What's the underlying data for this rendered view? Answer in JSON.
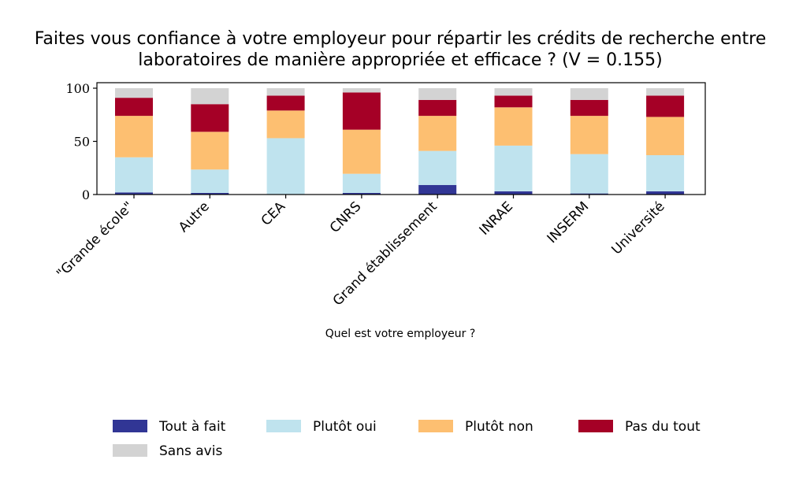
{
  "chart_data": {
    "type": "bar",
    "stacked": true,
    "title_lines": [
      "Faites vous confiance à votre employeur pour répartir les crédits de recherche entre",
      "laboratoires de manière appropriée et efficace ? (V = 0.155)"
    ],
    "xlabel": "Quel est votre employeur ?",
    "ylabel": "",
    "ylim": [
      0,
      100
    ],
    "yticks": [
      "0",
      "50",
      "100"
    ],
    "grid": false,
    "legend_position": "bottom",
    "categories": [
      "\"Grande école\"",
      "Autre",
      "CEA",
      "CNRS",
      "Grand établissement",
      "INRAE",
      "INSERM",
      "Université"
    ],
    "series": [
      {
        "name": "Tout à fait",
        "color": "#313695",
        "values": [
          2,
          1.5,
          0,
          1.5,
          9,
          3,
          1,
          3
        ]
      },
      {
        "name": "Plutôt oui",
        "color": "#bfe3ee",
        "values": [
          33,
          22,
          53,
          18,
          32,
          43,
          37,
          34
        ]
      },
      {
        "name": "Plutôt non",
        "color": "#fdbf71",
        "values": [
          39,
          35.5,
          26,
          41.5,
          33,
          36,
          36,
          36
        ]
      },
      {
        "name": "Pas du tout",
        "color": "#a50026",
        "values": [
          17,
          26,
          14,
          35,
          15,
          11,
          15,
          20
        ]
      },
      {
        "name": "Sans avis",
        "color": "#d3d3d3",
        "values": [
          9,
          15,
          7,
          4,
          11,
          7,
          11,
          7
        ]
      }
    ]
  }
}
